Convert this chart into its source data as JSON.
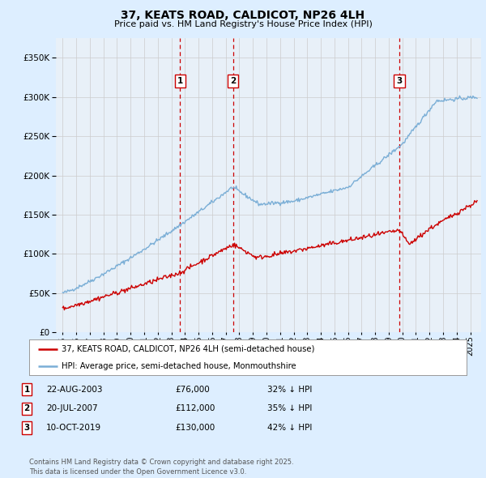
{
  "title": "37, KEATS ROAD, CALDICOT, NP26 4LH",
  "subtitle": "Price paid vs. HM Land Registry's House Price Index (HPI)",
  "legend_line1": "37, KEATS ROAD, CALDICOT, NP26 4LH (semi-detached house)",
  "legend_line2": "HPI: Average price, semi-detached house, Monmouthshire",
  "transactions": [
    {
      "label": "1",
      "date_str": "22-AUG-2003",
      "price": 76000,
      "hpi_pct": "32% ↓ HPI",
      "x_year": 2003.64
    },
    {
      "label": "2",
      "date_str": "20-JUL-2007",
      "price": 112000,
      "hpi_pct": "35% ↓ HPI",
      "x_year": 2007.55
    },
    {
      "label": "3",
      "date_str": "10-OCT-2019",
      "price": 130000,
      "hpi_pct": "42% ↓ HPI",
      "x_year": 2019.78
    }
  ],
  "footer": "Contains HM Land Registry data © Crown copyright and database right 2025.\nThis data is licensed under the Open Government Licence v3.0.",
  "red_color": "#cc0000",
  "blue_color": "#7aaed6",
  "background_color": "#ddeeff",
  "plot_bg_color": "#e8f0f8",
  "grid_color": "#cccccc",
  "ylim": [
    0,
    375000
  ],
  "yticks": [
    0,
    50000,
    100000,
    150000,
    200000,
    250000,
    300000,
    350000
  ],
  "xlim_start": 1994.5,
  "xlim_end": 2025.8,
  "xticks": [
    1995,
    1996,
    1997,
    1998,
    1999,
    2000,
    2001,
    2002,
    2003,
    2004,
    2005,
    2006,
    2007,
    2008,
    2009,
    2010,
    2011,
    2012,
    2013,
    2014,
    2015,
    2016,
    2017,
    2018,
    2019,
    2020,
    2021,
    2022,
    2023,
    2024,
    2025
  ]
}
